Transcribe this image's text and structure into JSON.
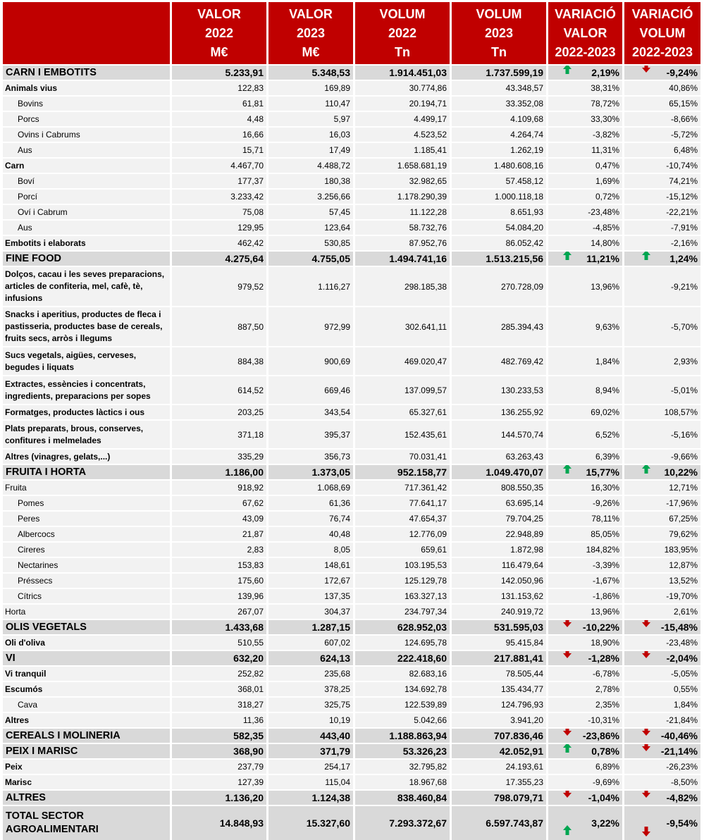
{
  "headers": [
    "",
    "VALOR\n2022\nM€",
    "VALOR\n2023\nM€",
    "VOLUM\n2022\nTn",
    "VOLUM\n2023\nTn",
    "VARIACIÓ\nVALOR\n2022-2023",
    "VARIACIÓ\nVOLUM\n2022-2023"
  ],
  "colors": {
    "header": "#c00000",
    "category": "#d9d9d9",
    "row": "#f2f2f2",
    "arrow_up": "#00a651",
    "arrow_down": "#c00000"
  },
  "rows": [
    {
      "type": "cat",
      "label": "CARN I EMBOTITS",
      "v": [
        "5.233,91",
        "5.348,53",
        "1.914.451,03",
        "1.737.599,19",
        "2,19%",
        "-9,24%"
      ],
      "arrows": [
        "up",
        "down"
      ]
    },
    {
      "type": "sub",
      "label": "Animals vius",
      "v": [
        "122,83",
        "169,89",
        "30.774,86",
        "43.348,57",
        "38,31%",
        "40,86%"
      ]
    },
    {
      "type": "item",
      "label": "Bovins",
      "v": [
        "61,81",
        "110,47",
        "20.194,71",
        "33.352,08",
        "78,72%",
        "65,15%"
      ]
    },
    {
      "type": "item",
      "label": "Porcs",
      "v": [
        "4,48",
        "5,97",
        "4.499,17",
        "4.109,68",
        "33,30%",
        "-8,66%"
      ]
    },
    {
      "type": "item",
      "label": "Ovins i Cabrums",
      "v": [
        "16,66",
        "16,03",
        "4.523,52",
        "4.264,74",
        "-3,82%",
        "-5,72%"
      ]
    },
    {
      "type": "item",
      "label": "Aus",
      "v": [
        "15,71",
        "17,49",
        "1.185,41",
        "1.262,19",
        "11,31%",
        "6,48%"
      ]
    },
    {
      "type": "sub",
      "label": "Carn",
      "v": [
        "4.467,70",
        "4.488,72",
        "1.658.681,19",
        "1.480.608,16",
        "0,47%",
        "-10,74%"
      ]
    },
    {
      "type": "item",
      "label": "Boví",
      "v": [
        "177,37",
        "180,38",
        "32.982,65",
        "57.458,12",
        "1,69%",
        "74,21%"
      ]
    },
    {
      "type": "item",
      "label": "Porcí",
      "v": [
        "3.233,42",
        "3.256,66",
        "1.178.290,39",
        "1.000.118,18",
        "0,72%",
        "-15,12%"
      ]
    },
    {
      "type": "item",
      "label": "Oví i Cabrum",
      "v": [
        "75,08",
        "57,45",
        "11.122,28",
        "8.651,93",
        "-23,48%",
        "-22,21%"
      ]
    },
    {
      "type": "item",
      "label": "Aus",
      "v": [
        "129,95",
        "123,64",
        "58.732,76",
        "54.084,20",
        "-4,85%",
        "-7,91%"
      ]
    },
    {
      "type": "sub",
      "label": "Embotits i elaborats",
      "v": [
        "462,42",
        "530,85",
        "87.952,76",
        "86.052,42",
        "14,80%",
        "-2,16%"
      ]
    },
    {
      "type": "cat",
      "label": "FINE FOOD",
      "v": [
        "4.275,64",
        "4.755,05",
        "1.494.741,16",
        "1.513.215,56",
        "11,21%",
        "1,24%"
      ],
      "arrows": [
        "up",
        "up"
      ]
    },
    {
      "type": "sub",
      "h": 3,
      "label": "Dolços, cacau i les seves preparacions, articles de confiteria, mel, cafè, tè, infusions",
      "v": [
        "979,52",
        "1.116,27",
        "298.185,38",
        "270.728,09",
        "13,96%",
        "-9,21%"
      ]
    },
    {
      "type": "sub",
      "h": 3,
      "label": "Snacks i aperitius, productes de fleca i pastisseria, productes base de cereals, fruits secs, arròs i llegums",
      "v": [
        "887,50",
        "972,99",
        "302.641,11",
        "285.394,43",
        "9,63%",
        "-5,70%"
      ]
    },
    {
      "type": "sub",
      "h": 4,
      "label": "Sucs vegetals, aigües, cerveses, begudes i liquats",
      "v": [
        "884,38",
        "900,69",
        "469.020,47",
        "482.769,42",
        "1,84%",
        "2,93%"
      ]
    },
    {
      "type": "sub",
      "h": 4,
      "label": "Extractes, essències i concentrats, ingredients, preparacions per sopes",
      "v": [
        "614,52",
        "669,46",
        "137.099,57",
        "130.233,53",
        "8,94%",
        "-5,01%"
      ]
    },
    {
      "type": "sub",
      "label": "Formatges, productes làctics i ous",
      "v": [
        "203,25",
        "343,54",
        "65.327,61",
        "136.255,92",
        "69,02%",
        "108,57%"
      ]
    },
    {
      "type": "sub",
      "h": 4,
      "label": "Plats preparats, brous, conserves, confitures i melmelades",
      "v": [
        "371,18",
        "395,37",
        "152.435,61",
        "144.570,74",
        "6,52%",
        "-5,16%"
      ]
    },
    {
      "type": "sub",
      "label": "Altres (vinagres, gelats,...)",
      "v": [
        "335,29",
        "356,73",
        "70.031,41",
        "63.263,43",
        "6,39%",
        "-9,66%"
      ]
    },
    {
      "type": "cat",
      "label": "FRUITA I HORTA",
      "v": [
        "1.186,00",
        "1.373,05",
        "952.158,77",
        "1.049.470,07",
        "15,77%",
        "10,22%"
      ],
      "arrows": [
        "up",
        "up"
      ]
    },
    {
      "type": "plain",
      "label": "Fruita",
      "v": [
        "918,92",
        "1.068,69",
        "717.361,42",
        "808.550,35",
        "16,30%",
        "12,71%"
      ]
    },
    {
      "type": "item",
      "label": "Pomes",
      "v": [
        "67,62",
        "61,36",
        "77.641,17",
        "63.695,14",
        "-9,26%",
        "-17,96%"
      ]
    },
    {
      "type": "item",
      "label": "Peres",
      "v": [
        "43,09",
        "76,74",
        "47.654,37",
        "79.704,25",
        "78,11%",
        "67,25%"
      ]
    },
    {
      "type": "item",
      "label": "Albercocs",
      "v": [
        "21,87",
        "40,48",
        "12.776,09",
        "22.948,89",
        "85,05%",
        "79,62%"
      ]
    },
    {
      "type": "item",
      "label": "Cireres",
      "v": [
        "2,83",
        "8,05",
        "659,61",
        "1.872,98",
        "184,82%",
        "183,95%"
      ]
    },
    {
      "type": "item",
      "label": "Nectarines",
      "v": [
        "153,83",
        "148,61",
        "103.195,53",
        "116.479,64",
        "-3,39%",
        "12,87%"
      ]
    },
    {
      "type": "item",
      "label": "Préssecs",
      "v": [
        "175,60",
        "172,67",
        "125.129,78",
        "142.050,96",
        "-1,67%",
        "13,52%"
      ]
    },
    {
      "type": "item",
      "label": "Cítrics",
      "v": [
        "139,96",
        "137,35",
        "163.327,13",
        "131.153,62",
        "-1,86%",
        "-19,70%"
      ]
    },
    {
      "type": "plain",
      "label": "Horta",
      "v": [
        "267,07",
        "304,37",
        "234.797,34",
        "240.919,72",
        "13,96%",
        "2,61%"
      ]
    },
    {
      "type": "cat",
      "label": "OLIS VEGETALS",
      "v": [
        "1.433,68",
        "1.287,15",
        "628.952,03",
        "531.595,03",
        "-10,22%",
        "-15,48%"
      ],
      "arrows": [
        "down",
        "down"
      ]
    },
    {
      "type": "sub",
      "label": "Oli d'oliva",
      "v": [
        "510,55",
        "607,02",
        "124.695,78",
        "95.415,84",
        "18,90%",
        "-23,48%"
      ]
    },
    {
      "type": "cat",
      "label": "VI",
      "v": [
        "632,20",
        "624,13",
        "222.418,60",
        "217.881,41",
        "-1,28%",
        "-2,04%"
      ],
      "arrows": [
        "down",
        "down"
      ]
    },
    {
      "type": "sub",
      "label": "Vi tranquil",
      "v": [
        "252,82",
        "235,68",
        "82.683,16",
        "78.505,44",
        "-6,78%",
        "-5,05%"
      ]
    },
    {
      "type": "sub",
      "label": "Escumós",
      "v": [
        "368,01",
        "378,25",
        "134.692,78",
        "135.434,77",
        "2,78%",
        "0,55%"
      ]
    },
    {
      "type": "item",
      "label": "Cava",
      "v": [
        "318,27",
        "325,75",
        "122.539,89",
        "124.796,93",
        "2,35%",
        "1,84%"
      ]
    },
    {
      "type": "sub",
      "label": "Altres",
      "v": [
        "11,36",
        "10,19",
        "5.042,66",
        "3.941,20",
        "-10,31%",
        "-21,84%"
      ]
    },
    {
      "type": "cat",
      "label": "CEREALS I MOLINERIA",
      "v": [
        "582,35",
        "443,40",
        "1.188.863,94",
        "707.836,46",
        "-23,86%",
        "-40,46%"
      ],
      "arrows": [
        "down",
        "down"
      ]
    },
    {
      "type": "cat",
      "label": "PEIX I MARISC",
      "v": [
        "368,90",
        "371,79",
        "53.326,23",
        "42.052,91",
        "0,78%",
        "-21,14%"
      ],
      "arrows": [
        "up",
        "down"
      ]
    },
    {
      "type": "sub",
      "label": "Peix",
      "v": [
        "237,79",
        "254,17",
        "32.795,82",
        "24.193,61",
        "6,89%",
        "-26,23%"
      ]
    },
    {
      "type": "sub",
      "label": "Marisc",
      "v": [
        "127,39",
        "115,04",
        "18.967,68",
        "17.355,23",
        "-9,69%",
        "-8,50%"
      ]
    },
    {
      "type": "cat",
      "label": "ALTRES",
      "v": [
        "1.136,20",
        "1.124,38",
        "838.460,84",
        "798.079,71",
        "-1,04%",
        "-4,82%"
      ],
      "arrows": [
        "down",
        "down"
      ]
    },
    {
      "type": "cat",
      "h": 2,
      "label": "TOTAL SECTOR AGROALIMENTARI",
      "v": [
        "14.848,93",
        "15.327,60",
        "7.293.372,67",
        "6.597.743,87",
        "3,22%",
        "-9,54%"
      ],
      "arrows": [
        "up",
        "down"
      ]
    }
  ]
}
